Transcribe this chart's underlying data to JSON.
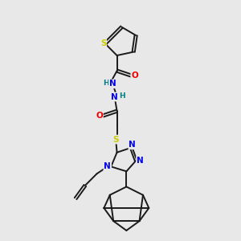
{
  "bg_color": "#e8e8e8",
  "bond_color": "#1a1a1a",
  "bond_width": 1.4,
  "S_color": "#cccc00",
  "N_color": "#0000ee",
  "O_color": "#ee0000",
  "H_color": "#008080",
  "fig_width": 3.0,
  "fig_height": 3.0,
  "dpi": 100,
  "xlim": [
    0,
    10
  ],
  "ylim": [
    0,
    10
  ]
}
